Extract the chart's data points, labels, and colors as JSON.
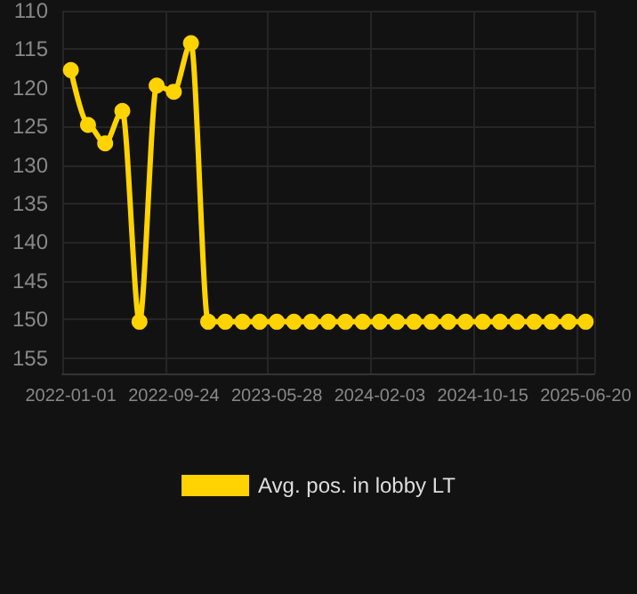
{
  "chart_data": {
    "type": "line",
    "categories": [
      "2022-01-01",
      null,
      null,
      null,
      null,
      null,
      "2022-09-24",
      null,
      null,
      null,
      null,
      null,
      "2023-05-28",
      null,
      null,
      null,
      null,
      null,
      "2024-02-03",
      null,
      null,
      null,
      null,
      null,
      "2024-10-15",
      null,
      null,
      null,
      null,
      null,
      "2025-06-20"
    ],
    "series": [
      {
        "name": "Avg. pos. in lobby LT",
        "color": "#ffd300",
        "values": [
          117.7,
          124.8,
          127.2,
          123,
          150.3,
          119.7,
          120.5,
          114.2,
          150.3,
          150.3,
          150.3,
          150.3,
          150.3,
          150.3,
          150.3,
          150.3,
          150.3,
          150.3,
          150.3,
          150.3,
          150.3,
          150.3,
          150.3,
          150.3,
          150.3,
          150.3,
          150.3,
          150.3,
          150.3,
          150.3,
          150.3
        ]
      }
    ],
    "ylim": [
      157,
      110
    ],
    "yticks": [
      110,
      115,
      120,
      125,
      130,
      135,
      140,
      145,
      150,
      155
    ],
    "grid": true,
    "legend": "bottom",
    "marker": "circle",
    "line_style": "solid"
  }
}
